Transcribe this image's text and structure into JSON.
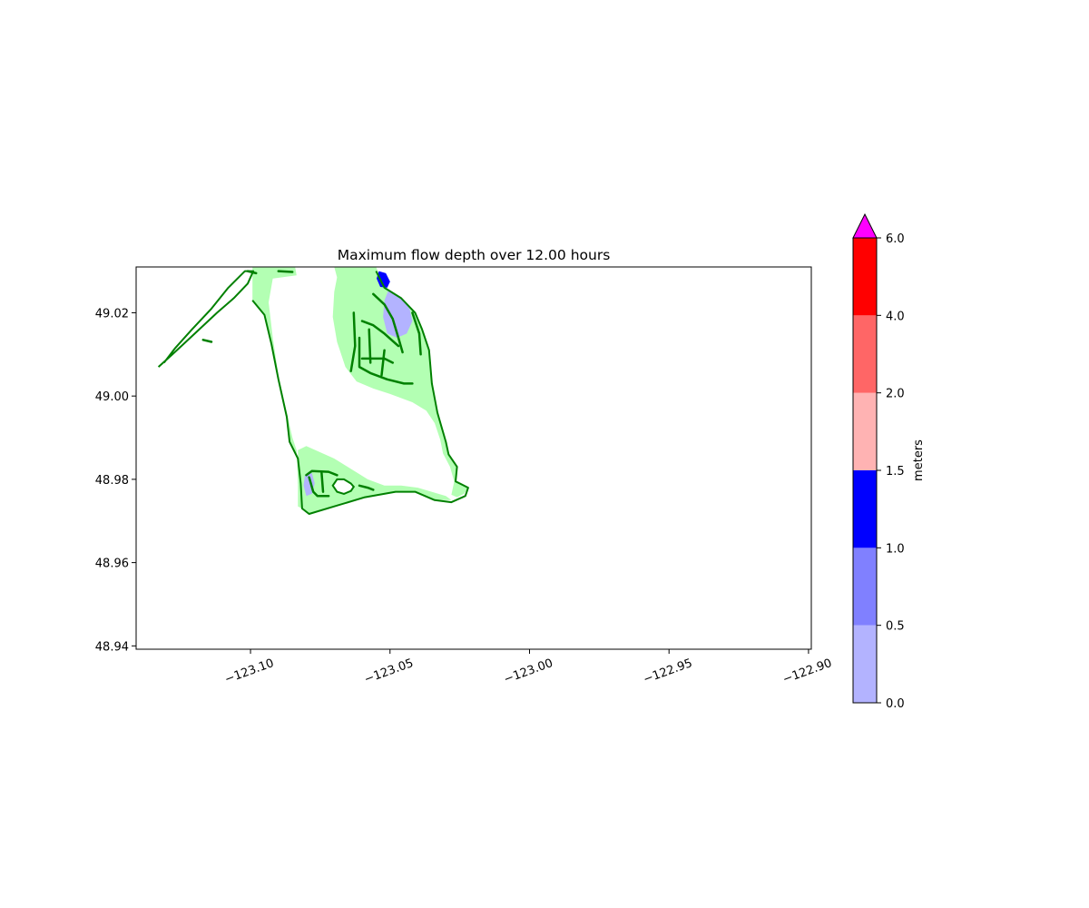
{
  "chart_data": {
    "type": "heatmap",
    "title": "Maximum flow depth over 12.00 hours",
    "xlabel": "",
    "ylabel": "",
    "xlim": [
      -123.141,
      -122.899
    ],
    "ylim": [
      48.9392,
      49.031
    ],
    "x_ticks": [
      -123.1,
      -123.05,
      -123.0,
      -122.95,
      -122.9
    ],
    "x_tick_labels": [
      "−123.10",
      "−123.05",
      "−123.00",
      "−122.95",
      "−122.90"
    ],
    "y_ticks": [
      48.94,
      48.96,
      48.98,
      49.0,
      49.02
    ],
    "y_tick_labels": [
      "48.94",
      "48.96",
      "48.98",
      "49.00",
      "49.02"
    ],
    "colorbar": {
      "label": "meters",
      "levels": [
        0.0,
        0.5,
        1.0,
        1.5,
        2.0,
        4.0,
        6.0
      ],
      "level_labels": [
        "0.0",
        "0.5",
        "1.0",
        "1.5",
        "2.0",
        "4.0",
        "6.0"
      ],
      "colors": [
        "#b3b3ff",
        "#8080ff",
        "#0000ff",
        "#ffb3b3",
        "#ff6666",
        "#ff0000"
      ],
      "extend_max_color": "#ff00ff"
    },
    "dry_land_color": "#b3ffb3",
    "shoreline_color": "#008000",
    "shoreline": [
      [
        -123.133,
        49.007
      ],
      [
        -123.128,
        49.01
      ],
      [
        -123.12,
        49.015
      ],
      [
        -123.112,
        49.02
      ],
      [
        -123.106,
        49.0235
      ],
      [
        -123.101,
        49.027
      ],
      [
        -123.099,
        49.03
      ],
      [
        -123.102,
        49.03
      ],
      [
        -123.108,
        49.026
      ],
      [
        -123.114,
        49.021
      ],
      [
        -123.121,
        49.016
      ],
      [
        -123.127,
        49.0115
      ],
      [
        -123.131,
        49.008
      ]
    ],
    "peninsula_outline": [
      [
        -123.0993,
        49.023
      ],
      [
        -123.095,
        49.0195
      ],
      [
        -123.0925,
        49.0125
      ],
      [
        -123.09,
        49.004
      ],
      [
        -123.087,
        48.995
      ],
      [
        -123.086,
        48.989
      ],
      [
        -123.083,
        48.985
      ],
      [
        -123.082,
        48.979
      ],
      [
        -123.0815,
        48.973
      ],
      [
        -123.079,
        48.9717
      ],
      [
        -123.07,
        48.9735
      ],
      [
        -123.059,
        48.9757
      ],
      [
        -123.048,
        48.977
      ],
      [
        -123.041,
        48.977
      ],
      [
        -123.034,
        48.975
      ],
      [
        -123.028,
        48.9745
      ],
      [
        -123.023,
        48.976
      ],
      [
        -123.022,
        48.978
      ],
      [
        -123.0265,
        48.9795
      ],
      [
        -123.026,
        48.983
      ],
      [
        -123.029,
        48.986
      ],
      [
        -123.03,
        48.989
      ],
      [
        -123.033,
        48.996
      ],
      [
        -123.035,
        49.003
      ],
      [
        -123.036,
        49.011
      ],
      [
        -123.0385,
        49.016
      ],
      [
        -123.041,
        49.02
      ],
      [
        -123.046,
        49.0235
      ],
      [
        -123.052,
        49.026
      ],
      [
        -123.055,
        49.03
      ]
    ],
    "inlet_ring": [
      [
        -123.064,
        48.979
      ],
      [
        -123.0665,
        48.98
      ],
      [
        -123.069,
        48.98
      ],
      [
        -123.0705,
        48.9785
      ],
      [
        -123.069,
        48.977
      ],
      [
        -123.0665,
        48.9765
      ],
      [
        -123.064,
        48.9772
      ],
      [
        -123.063,
        48.9782
      ]
    ],
    "inundation_zones": [
      {
        "name": "west-strip",
        "color": "#b3ffb3",
        "points": [
          [
            -123.0993,
            49.031
          ],
          [
            -123.084,
            49.031
          ],
          [
            -123.0835,
            49.029
          ],
          [
            -123.092,
            49.0282
          ],
          [
            -123.0935,
            49.0225
          ],
          [
            -123.092,
            49.014
          ],
          [
            -123.09,
            49.005
          ],
          [
            -123.087,
            48.996
          ],
          [
            -123.085,
            48.99
          ],
          [
            -123.0835,
            48.987
          ],
          [
            -123.083,
            48.979
          ],
          [
            -123.083,
            48.9735
          ],
          [
            -123.0815,
            48.973
          ],
          [
            -123.082,
            48.979
          ],
          [
            -123.083,
            48.985
          ],
          [
            -123.086,
            48.989
          ],
          [
            -123.087,
            48.995
          ],
          [
            -123.09,
            49.004
          ],
          [
            -123.0925,
            49.0125
          ],
          [
            -123.095,
            49.0195
          ],
          [
            -123.0993,
            49.023
          ]
        ]
      },
      {
        "name": "north-zone",
        "color": "#b3ffb3",
        "points": [
          [
            -123.07,
            49.031
          ],
          [
            -123.055,
            49.031
          ],
          [
            -123.052,
            49.026
          ],
          [
            -123.046,
            49.0235
          ],
          [
            -123.041,
            49.02
          ],
          [
            -123.0385,
            49.016
          ],
          [
            -123.036,
            49.011
          ],
          [
            -123.035,
            49.003
          ],
          [
            -123.033,
            48.996
          ],
          [
            -123.03,
            48.989
          ],
          [
            -123.029,
            48.986
          ],
          [
            -123.026,
            48.983
          ],
          [
            -123.0265,
            48.9795
          ],
          [
            -123.022,
            48.978
          ],
          [
            -123.0235,
            48.9765
          ],
          [
            -123.026,
            48.9757
          ],
          [
            -123.028,
            48.9763
          ],
          [
            -123.027,
            48.9795
          ],
          [
            -123.0285,
            48.983
          ],
          [
            -123.031,
            48.9862
          ],
          [
            -123.032,
            48.9895
          ],
          [
            -123.034,
            48.9935
          ],
          [
            -123.037,
            48.9965
          ],
          [
            -123.042,
            48.9985
          ],
          [
            -123.05,
            49.0005
          ],
          [
            -123.056,
            49.0018
          ],
          [
            -123.062,
            49.0035
          ],
          [
            -123.066,
            49.007
          ],
          [
            -123.069,
            49.013
          ],
          [
            -123.0705,
            49.019
          ],
          [
            -123.07,
            49.025
          ],
          [
            -123.069,
            49.0285
          ]
        ]
      },
      {
        "name": "south-zone",
        "color": "#b3ffb3",
        "points": [
          [
            -123.083,
            48.987
          ],
          [
            -123.08,
            48.988
          ],
          [
            -123.076,
            48.9868
          ],
          [
            -123.07,
            48.985
          ],
          [
            -123.064,
            48.9825
          ],
          [
            -123.058,
            48.98
          ],
          [
            -123.052,
            48.9785
          ],
          [
            -123.046,
            48.9785
          ],
          [
            -123.04,
            48.978
          ],
          [
            -123.034,
            48.9768
          ],
          [
            -123.03,
            48.976
          ],
          [
            -123.028,
            48.975
          ],
          [
            -123.034,
            48.975
          ],
          [
            -123.041,
            48.977
          ],
          [
            -123.048,
            48.977
          ],
          [
            -123.059,
            48.9757
          ],
          [
            -123.07,
            48.9735
          ],
          [
            -123.079,
            48.9717
          ],
          [
            -123.0815,
            48.973
          ],
          [
            -123.083,
            48.979
          ]
        ]
      },
      {
        "name": "north-shallow-flooding",
        "color": "#b3b3ff",
        "points": [
          [
            -123.0505,
            49.0255
          ],
          [
            -123.046,
            49.0235
          ],
          [
            -123.043,
            49.021
          ],
          [
            -123.042,
            49.018
          ],
          [
            -123.044,
            49.015
          ],
          [
            -123.0475,
            49.014
          ],
          [
            -123.051,
            49.015
          ],
          [
            -123.0525,
            49.019
          ],
          [
            -123.052,
            49.023
          ]
        ]
      },
      {
        "name": "north-deep-flooding",
        "color": "#0000ff",
        "points": [
          [
            -123.054,
            49.03
          ],
          [
            -123.0515,
            49.0295
          ],
          [
            -123.05,
            49.0275
          ],
          [
            -123.051,
            49.026
          ],
          [
            -123.0535,
            49.0262
          ],
          [
            -123.0548,
            49.0282
          ]
        ]
      },
      {
        "name": "south-shallow-flooding",
        "color": "#b3b3ff",
        "points": [
          [
            -123.0805,
            48.981
          ],
          [
            -123.078,
            48.9815
          ],
          [
            -123.077,
            48.979
          ],
          [
            -123.078,
            48.9765
          ],
          [
            -123.08,
            48.976
          ],
          [
            -123.081,
            48.9785
          ]
        ]
      }
    ],
    "roads_color": "#008000",
    "roads": [
      [
        [
          -123.056,
          49.0245
        ],
        [
          -123.052,
          49.022
        ],
        [
          -123.049,
          49.0185
        ],
        [
          -123.047,
          49.014
        ],
        [
          -123.0455,
          49.0105
        ]
      ],
      [
        [
          -123.06,
          49.018
        ],
        [
          -123.056,
          49.017
        ],
        [
          -123.052,
          49.015
        ],
        [
          -123.047,
          49.012
        ]
      ],
      [
        [
          -123.061,
          49.014
        ],
        [
          -123.061,
          49.007
        ],
        [
          -123.057,
          49.0055
        ],
        [
          -123.051,
          49.004
        ],
        [
          -123.045,
          49.003
        ],
        [
          -123.042,
          49.003
        ]
      ],
      [
        [
          -123.063,
          49.02
        ],
        [
          -123.0625,
          49.012
        ],
        [
          -123.064,
          49.006
        ]
      ],
      [
        [
          -123.0575,
          49.016
        ],
        [
          -123.057,
          49.008
        ]
      ],
      [
        [
          -123.052,
          49.011
        ],
        [
          -123.053,
          49.005
        ]
      ],
      [
        [
          -123.06,
          49.009
        ],
        [
          -123.052,
          49.009
        ],
        [
          -123.049,
          49.008
        ]
      ],
      [
        [
          -123.042,
          49.02
        ],
        [
          -123.0395,
          49.015
        ],
        [
          -123.039,
          49.01
        ]
      ],
      [
        [
          -123.08,
          48.981
        ],
        [
          -123.078,
          48.982
        ],
        [
          -123.072,
          48.9818
        ],
        [
          -123.069,
          48.981
        ]
      ],
      [
        [
          -123.079,
          48.9805
        ],
        [
          -123.0775,
          48.977
        ],
        [
          -123.076,
          48.976
        ],
        [
          -123.072,
          48.976
        ]
      ],
      [
        [
          -123.0745,
          48.9815
        ],
        [
          -123.074,
          48.977
        ]
      ],
      [
        [
          -123.061,
          48.9785
        ],
        [
          -123.058,
          48.978
        ],
        [
          -123.056,
          48.9775
        ]
      ],
      [
        [
          -123.101,
          49.03
        ],
        [
          -123.098,
          49.0295
        ]
      ],
      [
        [
          -123.09,
          49.03
        ],
        [
          -123.085,
          49.0298
        ]
      ],
      [
        [
          -123.117,
          49.0135
        ],
        [
          -123.114,
          49.013
        ]
      ]
    ]
  }
}
